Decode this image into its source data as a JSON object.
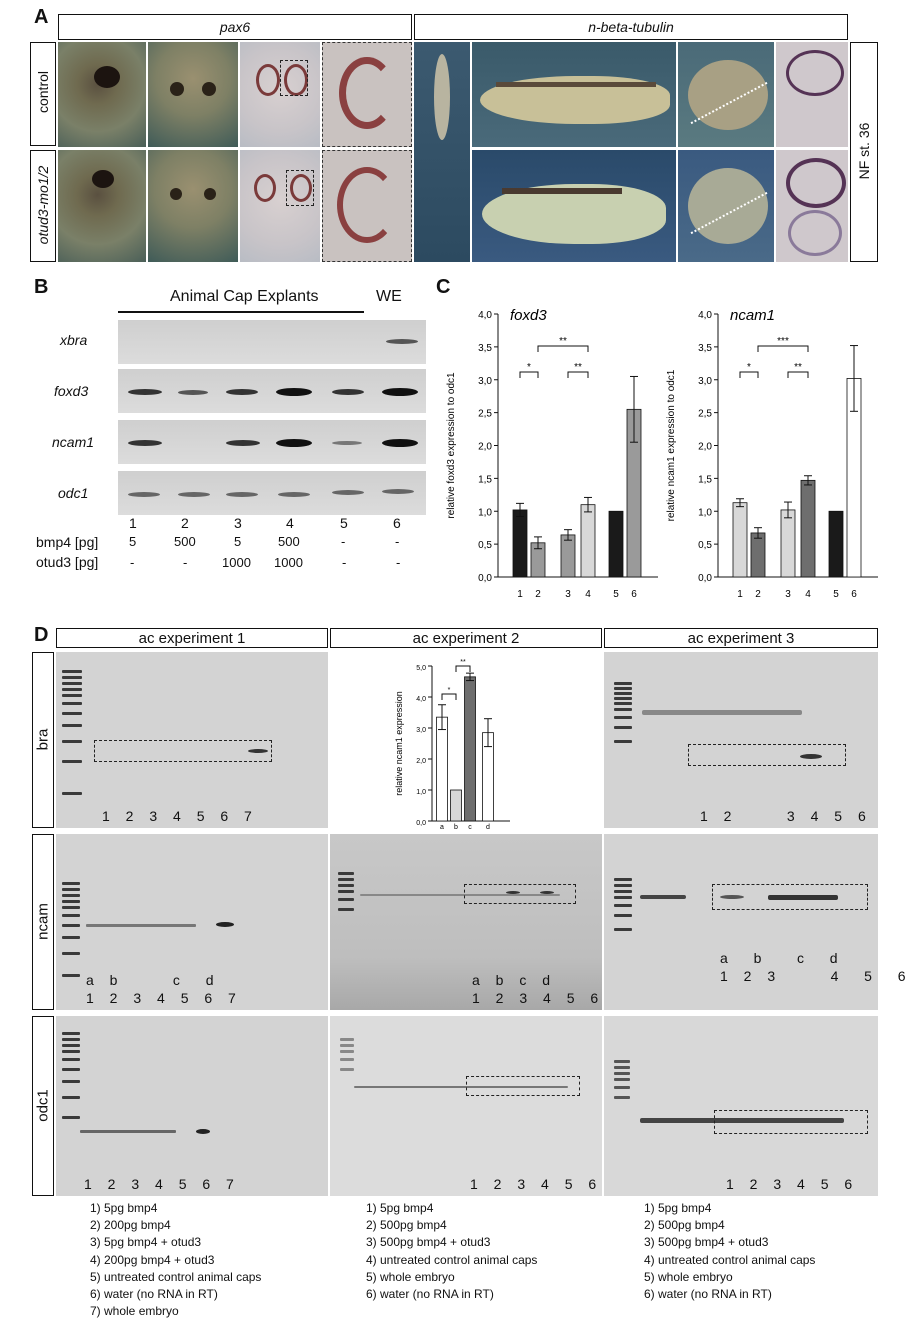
{
  "panel_labels": {
    "a": "A",
    "b": "B",
    "c": "C",
    "d": "D"
  },
  "panel_a": {
    "header_left": "pax6",
    "header_right": "n-beta-tubulin",
    "row1_label": "control",
    "row2_label": "otud3-mo1/2",
    "stage_label": "NF st. 36"
  },
  "panel_b": {
    "title": "Animal Cap Explants",
    "we_label": "WE",
    "genes": [
      "xbra",
      "foxd3",
      "ncam1",
      "odc1"
    ],
    "lanes": [
      "1",
      "2",
      "3",
      "4",
      "5",
      "6"
    ],
    "bmp4_label": "bmp4 [pg]",
    "otud3_label": "otud3 [pg]",
    "bmp4_values": [
      "5",
      "500",
      "5",
      "500",
      "-",
      "-"
    ],
    "otud3_values": [
      "-",
      "-",
      "1000",
      "1000",
      "-",
      "-"
    ]
  },
  "chart_data": [
    {
      "type": "bar",
      "title": "foxd3",
      "ylabel": "relative foxd3 expression to odc1",
      "categories": [
        "1",
        "2",
        "3",
        "4",
        "5",
        "6"
      ],
      "values": [
        1.02,
        0.52,
        0.64,
        1.1,
        1.0,
        2.55
      ],
      "errors": [
        0.1,
        0.09,
        0.08,
        0.11,
        0.0,
        0.5
      ],
      "colors": [
        "#1a1a1a",
        "#9a9a9a",
        "#9a9a9a",
        "#d8d8d8",
        "#1a1a1a",
        "#9a9a9a"
      ],
      "ylim": [
        0,
        4.0
      ],
      "yticks": [
        "0,0",
        "0,5",
        "1,0",
        "1,5",
        "2,0",
        "2,5",
        "3,0",
        "3,5",
        "4,0"
      ],
      "significance": [
        {
          "from": "1",
          "to": "2",
          "label": "*"
        },
        {
          "from": "2",
          "to": "4",
          "label": "**"
        },
        {
          "from": "3",
          "to": "4",
          "label": "**"
        }
      ]
    },
    {
      "type": "bar",
      "title": "ncam1",
      "ylabel": "relative ncam1 expression to odc1",
      "categories": [
        "1",
        "2",
        "3",
        "4",
        "5",
        "6"
      ],
      "values": [
        1.13,
        0.67,
        1.02,
        1.47,
        1.0,
        3.02
      ],
      "errors": [
        0.06,
        0.08,
        0.12,
        0.07,
        0.0,
        0.5
      ],
      "colors": [
        "#d8d8d8",
        "#6e6e6e",
        "#d8d8d8",
        "#6e6e6e",
        "#1a1a1a",
        "#ffffff"
      ],
      "ylim": [
        0,
        4.0
      ],
      "yticks": [
        "0,0",
        "0,5",
        "1,0",
        "1,5",
        "2,0",
        "2,5",
        "3,0",
        "3,5",
        "4,0"
      ],
      "significance": [
        {
          "from": "1",
          "to": "2",
          "label": "*"
        },
        {
          "from": "2",
          "to": "4",
          "label": "***"
        },
        {
          "from": "3",
          "to": "4",
          "label": "**"
        }
      ]
    },
    {
      "type": "bar",
      "title": "",
      "ylabel": "relative ncam1 expression",
      "categories": [
        "a",
        "b",
        "c",
        "d"
      ],
      "values": [
        3.35,
        1.0,
        4.65,
        2.85
      ],
      "errors": [
        0.4,
        0.0,
        0.12,
        0.45
      ],
      "colors": [
        "#ffffff",
        "#d8d8d8",
        "#6e6e6e",
        "#ffffff"
      ],
      "ylim": [
        0,
        5.0
      ],
      "yticks": [
        "0,0",
        "1,0",
        "2,0",
        "3,0",
        "4,0",
        "5,0"
      ],
      "significance": [
        {
          "from": "a",
          "to": "b",
          "label": "*"
        },
        {
          "from": "b",
          "to": "c",
          "label": "**"
        }
      ]
    }
  ],
  "panel_d": {
    "exp1_title": "ac experiment 1",
    "exp2_title": "ac experiment 2",
    "exp3_title": "ac experiment 3",
    "row_labels": [
      "bra",
      "ncam",
      "odc1"
    ],
    "exp1_bra_lanes": "1 2 3 4 5 6 7",
    "exp1_ncam_letters": "a b     c  d",
    "exp1_ncam_lanes": "1 2 3 4 5 6 7",
    "exp1_odc_lanes": "1 2 3 4 5 6 7",
    "exp2_ncam_letters": "a b c d",
    "exp2_ncam_lanes": "1 2 3 4 5 6",
    "exp2_odc_lanes": "1 2 3 4 5 6",
    "exp3_bra_lanes": "1 2     3 4 5 6",
    "exp3_ncam_letters": "a  b   c  d",
    "exp3_ncam_lanes": "1 2 3     4  5  6",
    "exp3_odc_lanes": "1 2 3 4 5 6",
    "legend1": [
      "1) 5pg bmp4",
      "2) 200pg bmp4",
      "3) 5pg bmp4 + otud3",
      "4) 200pg bmp4 + otud3",
      "5) untreated control animal caps",
      "6) water (no RNA in RT)",
      "7) whole embryo"
    ],
    "legend2": [
      "1) 5pg bmp4",
      "2) 500pg bmp4",
      "3) 500pg bmp4 + otud3",
      "4) untreated control animal caps",
      "5) whole embryo",
      "6) water (no RNA in RT)"
    ],
    "legend3": [
      "1) 5pg bmp4",
      "2) 500pg bmp4",
      "3) 500pg bmp4 + otud3",
      "4) untreated control animal caps",
      "5) whole embryo",
      "6) water (no RNA in RT)"
    ]
  }
}
